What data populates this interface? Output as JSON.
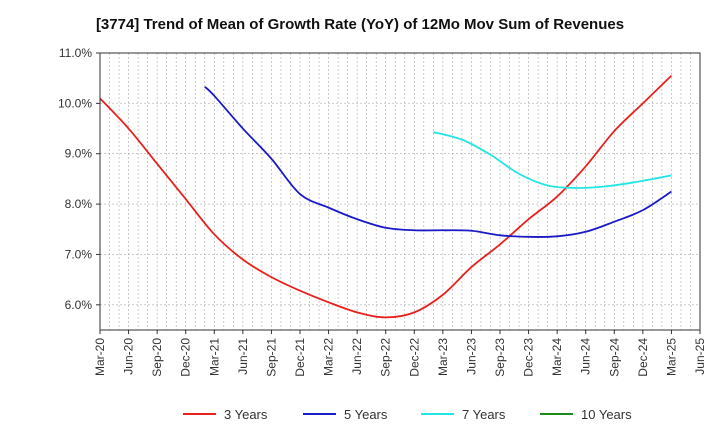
{
  "chart_data": {
    "type": "line",
    "title": "[3774]  Trend of Mean of Growth Rate (YoY) of 12Mo Mov Sum of Revenues",
    "xlabel": "",
    "ylabel": "",
    "ylim": [
      5.5,
      11.0
    ],
    "yticks": [
      "11.0%",
      "10.0%",
      "9.0%",
      "8.0%",
      "7.0%",
      "6.0%"
    ],
    "ytick_values": [
      11.0,
      10.0,
      9.0,
      8.0,
      7.0,
      6.0
    ],
    "x_start_month_index": 0,
    "x_end_month_index": 63,
    "xticks": [
      "Mar-20",
      "Jun-20",
      "Sep-20",
      "Dec-20",
      "Mar-21",
      "Jun-21",
      "Sep-21",
      "Dec-21",
      "Mar-22",
      "Jun-22",
      "Sep-22",
      "Dec-22",
      "Mar-23",
      "Jun-23",
      "Sep-23",
      "Dec-23",
      "Mar-24",
      "Jun-24",
      "Sep-24",
      "Dec-24",
      "Mar-25",
      "Jun-25"
    ],
    "grid": true,
    "legend_position": "bottom",
    "series": [
      {
        "name": "3 Years",
        "color": "#e8211d",
        "points": [
          [
            0,
            10.1
          ],
          [
            3,
            9.5
          ],
          [
            6,
            8.8
          ],
          [
            9,
            8.1
          ],
          [
            12,
            7.4
          ],
          [
            15,
            6.9
          ],
          [
            18,
            6.55
          ],
          [
            21,
            6.28
          ],
          [
            24,
            6.05
          ],
          [
            27,
            5.85
          ],
          [
            30,
            5.75
          ],
          [
            33,
            5.85
          ],
          [
            36,
            6.2
          ],
          [
            39,
            6.75
          ],
          [
            42,
            7.2
          ],
          [
            45,
            7.7
          ],
          [
            48,
            8.15
          ],
          [
            51,
            8.75
          ],
          [
            54,
            9.45
          ],
          [
            57,
            10.0
          ],
          [
            60,
            10.55
          ]
        ]
      },
      {
        "name": "5 Years",
        "color": "#1a1ac8",
        "points": [
          [
            11,
            10.33
          ],
          [
            12,
            10.15
          ],
          [
            15,
            9.5
          ],
          [
            18,
            8.9
          ],
          [
            21,
            8.2
          ],
          [
            24,
            7.93
          ],
          [
            27,
            7.7
          ],
          [
            30,
            7.53
          ],
          [
            33,
            7.48
          ],
          [
            36,
            7.48
          ],
          [
            39,
            7.47
          ],
          [
            42,
            7.38
          ],
          [
            45,
            7.35
          ],
          [
            48,
            7.36
          ],
          [
            51,
            7.45
          ],
          [
            54,
            7.65
          ],
          [
            57,
            7.88
          ],
          [
            60,
            8.25
          ]
        ]
      },
      {
        "name": "7 Years",
        "color": "#22e5e5",
        "points": [
          [
            35,
            9.43
          ],
          [
            38,
            9.28
          ],
          [
            41,
            8.98
          ],
          [
            44,
            8.6
          ],
          [
            47,
            8.37
          ],
          [
            50,
            8.32
          ],
          [
            53,
            8.35
          ],
          [
            56,
            8.43
          ],
          [
            60,
            8.57
          ]
        ]
      },
      {
        "name": "10 Years",
        "color": "#1a8a1a",
        "points": []
      }
    ]
  }
}
